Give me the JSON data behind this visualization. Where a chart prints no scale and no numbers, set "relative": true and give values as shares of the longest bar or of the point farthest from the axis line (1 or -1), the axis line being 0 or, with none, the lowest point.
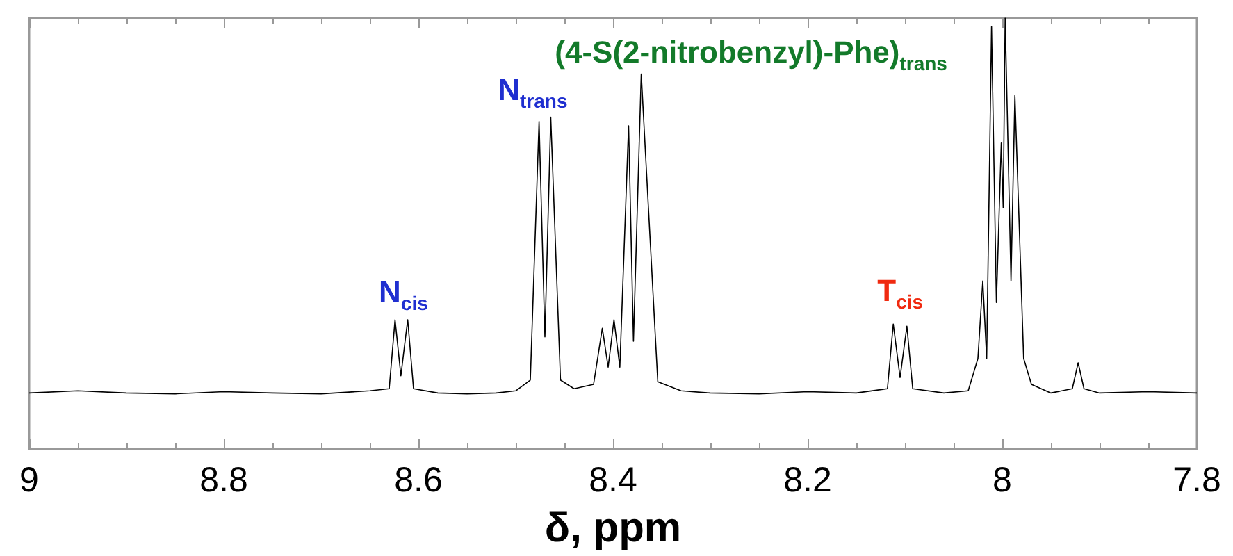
{
  "chart_data": {
    "type": "line",
    "relative": true,
    "xlabel": "δ, ppm",
    "xlim": [
      9,
      7.8
    ],
    "xticks": [
      9,
      8.8,
      8.6,
      8.4,
      8.2,
      8,
      7.8
    ],
    "grid": false,
    "marker": "none",
    "line_style": "solid",
    "color": "#000000",
    "x": [
      9.0,
      8.95,
      8.9,
      8.85,
      8.8,
      8.75,
      8.7,
      8.65,
      8.63,
      8.624,
      8.618,
      8.611,
      8.605,
      8.58,
      8.55,
      8.52,
      8.5,
      8.485,
      8.476,
      8.47,
      8.464,
      8.454,
      8.44,
      8.42,
      8.411,
      8.405,
      8.399,
      8.393,
      8.384,
      8.379,
      8.371,
      8.354,
      8.33,
      8.3,
      8.25,
      8.2,
      8.15,
      8.118,
      8.112,
      8.105,
      8.098,
      8.092,
      8.06,
      8.035,
      8.025,
      8.02,
      8.016,
      8.011,
      8.006,
      8.001,
      7.999,
      7.997,
      7.991,
      7.987,
      7.978,
      7.97,
      7.95,
      7.928,
      7.922,
      7.916,
      7.9,
      7.85,
      7.8
    ],
    "values": [
      0.13,
      0.135,
      0.13,
      0.128,
      0.133,
      0.13,
      0.128,
      0.135,
      0.14,
      0.3,
      0.17,
      0.3,
      0.14,
      0.13,
      0.128,
      0.13,
      0.135,
      0.16,
      0.76,
      0.26,
      0.77,
      0.16,
      0.14,
      0.15,
      0.28,
      0.19,
      0.3,
      0.19,
      0.75,
      0.25,
      0.87,
      0.156,
      0.135,
      0.13,
      0.128,
      0.133,
      0.13,
      0.14,
      0.29,
      0.166,
      0.285,
      0.14,
      0.13,
      0.135,
      0.21,
      0.39,
      0.21,
      0.98,
      0.34,
      0.71,
      0.56,
      1.0,
      0.39,
      0.82,
      0.21,
      0.15,
      0.13,
      0.14,
      0.2,
      0.14,
      0.13,
      0.133,
      0.13
    ],
    "annotations": [
      {
        "text": "N$_{cis}$",
        "x": 8.624,
        "y": 0.3
      },
      {
        "text": "N$_{trans}$",
        "x": 8.464,
        "y": 0.77
      },
      {
        "text": "(4-S(2-nitrobenzyl)-Phe)$_{trans}$",
        "x": 8.371,
        "y": 0.87
      },
      {
        "text": "T$_{cis}$",
        "x": 8.112,
        "y": 0.29
      }
    ]
  }
}
